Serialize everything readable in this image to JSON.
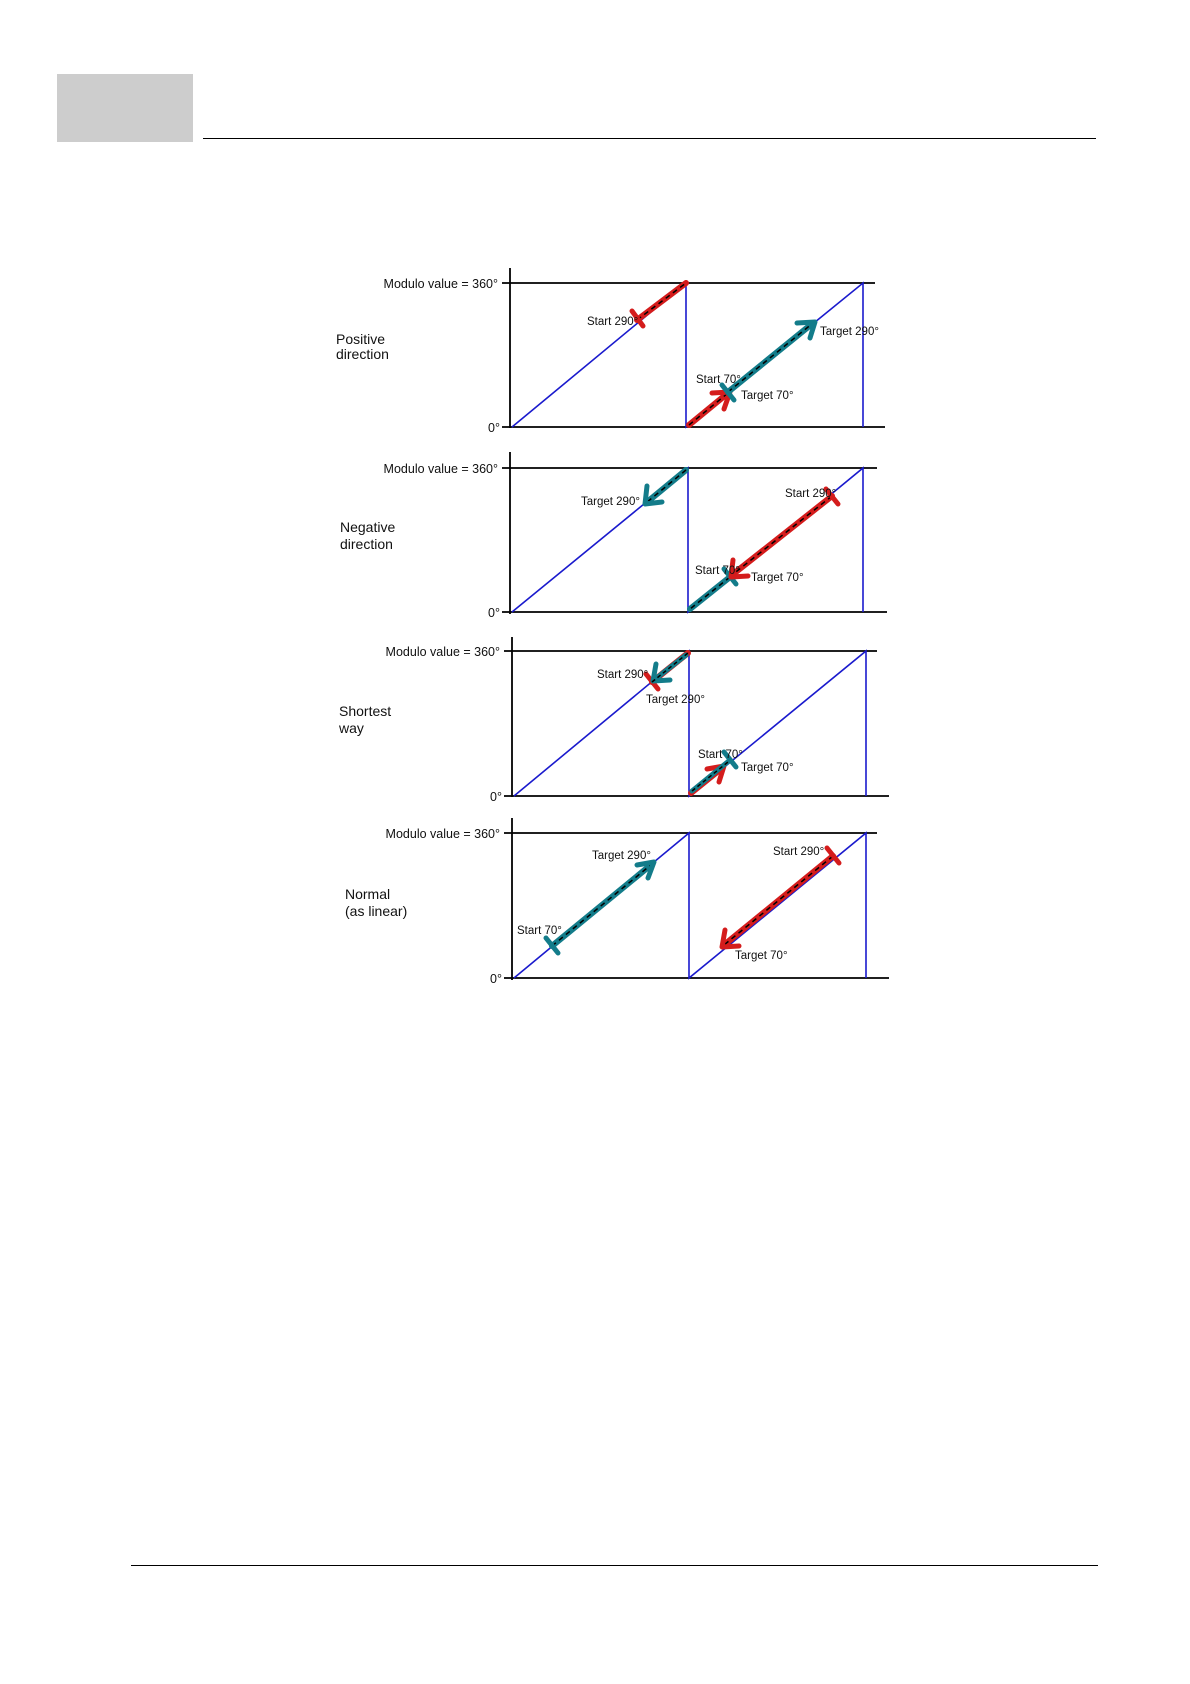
{
  "colors": {
    "axis": "#000000",
    "sawtooth": "#1a1acd",
    "positive_move": "#d41c1c",
    "negative_move": "#137c8a",
    "arrow_core": "#000000"
  },
  "header": {
    "box_color": "#cdcdcd"
  },
  "diagram": {
    "panels": [
      {
        "id": "positive",
        "label_line1": "Positive",
        "label_line2": "direction",
        "modulo_label": "Modulo value = 360°",
        "zero_label": "0°",
        "annotations": {
          "a": "Start 290°",
          "b": "Target 290°",
          "c": "Start 70°",
          "d": "Target 70°"
        }
      },
      {
        "id": "negative",
        "label_line1": "Negative",
        "label_line2": "direction",
        "modulo_label": "Modulo value = 360°",
        "zero_label": "0°",
        "annotations": {
          "a": "Target 290°",
          "b": "Start 290°",
          "c": "Start 70°",
          "d": "Target 70°"
        }
      },
      {
        "id": "shortest",
        "label_line1": "Shortest",
        "label_line2": "way",
        "modulo_label": "Modulo value = 360°",
        "zero_label": "0°",
        "annotations": {
          "a": "Start 290°",
          "b": "Target 290°",
          "c": "Start 70°",
          "d": "Target 70°"
        }
      },
      {
        "id": "normal",
        "label_line1": "Normal",
        "label_line2": "(as linear)",
        "modulo_label": "Modulo value = 360°",
        "zero_label": "0°",
        "annotations": {
          "a": "Target 290°",
          "b": "Start 70°",
          "c": "Start 290°",
          "d": "Target 70°"
        }
      }
    ]
  }
}
